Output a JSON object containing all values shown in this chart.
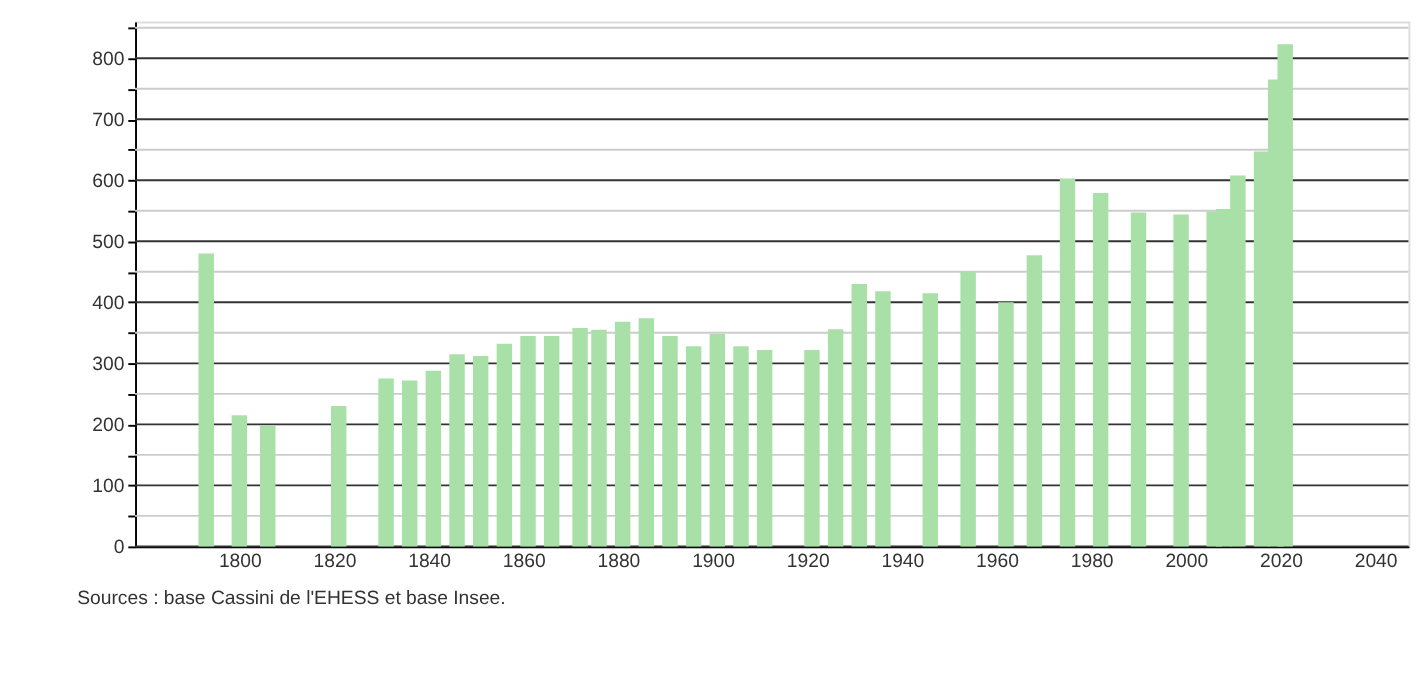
{
  "chart_data": {
    "type": "bar",
    "color": "#a8e0a8",
    "x": [
      1793,
      1800,
      1806,
      1821,
      1831,
      1836,
      1841,
      1846,
      1851,
      1856,
      1861,
      1866,
      1872,
      1876,
      1881,
      1886,
      1891,
      1896,
      1901,
      1906,
      1911,
      1921,
      1926,
      1931,
      1936,
      1946,
      1954,
      1962,
      1968,
      1975,
      1982,
      1990,
      1999,
      2006,
      2008,
      2011,
      2016,
      2019,
      2021
    ],
    "values": [
      480,
      215,
      198,
      230,
      275,
      272,
      288,
      315,
      312,
      332,
      345,
      345,
      358,
      355,
      368,
      374,
      345,
      328,
      348,
      328,
      322,
      322,
      356,
      430,
      418,
      415,
      450,
      400,
      477,
      603,
      579,
      547,
      544,
      549,
      553,
      608,
      647,
      765,
      823
    ],
    "xlim": [
      1780,
      2045
    ],
    "xticks": [
      1800,
      1820,
      1840,
      1860,
      1880,
      1900,
      1920,
      1940,
      1960,
      1980,
      2000,
      2020,
      2040
    ],
    "ylim": [
      0,
      860
    ],
    "yticks": [
      0,
      {
        "value": 50,
        "label": null
      },
      100,
      {
        "value": 150,
        "label": null
      },
      200,
      {
        "value": 250,
        "label": null
      },
      300,
      {
        "value": 350,
        "label": null
      },
      400,
      {
        "value": 450,
        "label": null
      },
      500,
      {
        "value": 550,
        "label": null
      },
      600,
      {
        "value": 650,
        "label": null
      },
      700,
      {
        "value": 750,
        "label": null
      },
      800,
      {
        "value": 850,
        "label": null
      }
    ],
    "grid": "y",
    "annotations": [
      "Sources : base Cassini de l'EHESS et base Insee."
    ]
  }
}
